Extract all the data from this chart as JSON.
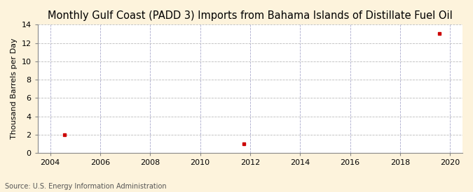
{
  "title": "Monthly Gulf Coast (PADD 3) Imports from Bahama Islands of Distillate Fuel Oil",
  "ylabel": "Thousand Barrels per Day",
  "source": "Source: U.S. Energy Information Administration",
  "data_x": [
    2004.583,
    2011.75,
    2019.583
  ],
  "data_y": [
    2,
    1,
    13
  ],
  "marker_color": "#cc0000",
  "marker_size": 3.5,
  "xlim": [
    2003.5,
    2020.5
  ],
  "ylim": [
    0,
    14
  ],
  "xticks": [
    2004,
    2006,
    2008,
    2010,
    2012,
    2014,
    2016,
    2018,
    2020
  ],
  "yticks": [
    0,
    2,
    4,
    6,
    8,
    10,
    12,
    14
  ],
  "figure_bg_color": "#fdf3dc",
  "plot_bg_color": "#ffffff",
  "grid_color": "#bbbbbb",
  "vgrid_color": "#aaaacc",
  "title_fontsize": 10.5,
  "label_fontsize": 8,
  "tick_fontsize": 8,
  "source_fontsize": 7
}
